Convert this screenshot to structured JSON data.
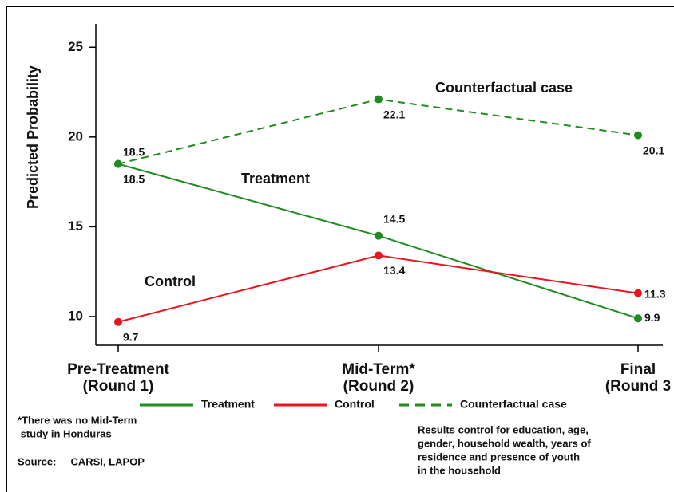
{
  "chart_data": {
    "type": "line",
    "y_label": "Predicted Probability",
    "categories": [
      [
        "Pre-Treatment",
        "(Round 1)"
      ],
      [
        "Mid-Term*",
        "(Round 2)"
      ],
      [
        "Final",
        "(Round 3"
      ]
    ],
    "series": [
      {
        "name": "Treatment",
        "color": "#1e8c1e",
        "dash": false,
        "values": [
          18.5,
          14.5,
          9.9
        ]
      },
      {
        "name": "Control",
        "color": "#e8141e",
        "dash": false,
        "values": [
          9.7,
          13.4,
          11.3
        ]
      },
      {
        "name": "Counterfactual case",
        "color": "#1e8c1e",
        "dash": true,
        "values": [
          18.5,
          22.1,
          20.1
        ]
      }
    ],
    "ylim": [
      8.4,
      26.3
    ],
    "yticks": [
      10,
      15,
      20,
      25
    ],
    "annotations": [
      "Counterfactual case",
      "Treatment",
      "Control"
    ],
    "notes": [
      "*There was no Mid-Term",
      " study in Honduras",
      "Source:     CARSI, LAPOP"
    ],
    "notes_right": [
      "Results control for education, age,",
      "gender, household wealth, years of",
      "residence and presence of youth",
      "in the household"
    ]
  }
}
